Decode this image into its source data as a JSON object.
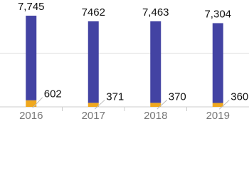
{
  "chart_data": {
    "type": "stacked_bar",
    "categories": [
      "2016",
      "2017",
      "2018",
      "2019"
    ],
    "series": [
      {
        "color": "#f0a81e",
        "values": [
          602,
          371,
          370,
          360
        ]
      },
      {
        "color": "#4343a3",
        "values": [
          7745,
          7462,
          7463,
          7304
        ],
        "value_labels": [
          "7,745",
          "7462",
          "7,463",
          "7,304"
        ]
      }
    ],
    "ylim": [
      0,
      9000
    ]
  }
}
